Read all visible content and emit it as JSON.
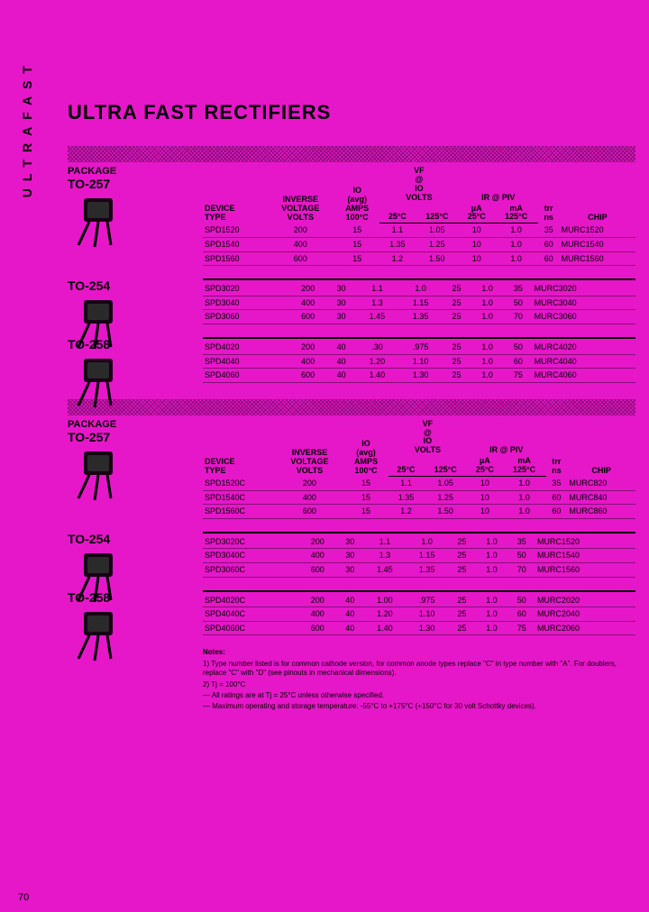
{
  "side_label": "ULTRAFAST",
  "title": "ULTRA FAST RECTIFIERS",
  "page_number": "70",
  "header": {
    "package": "PACKAGE",
    "device_type": "DEVICE TYPE",
    "inverse_voltage": "INVERSE VOLTAGE VOLTS",
    "io_avg": "IO (avg) AMPS 100°C",
    "vf": "VF @ IO VOLTS",
    "vf_25": "25°C",
    "vf_125": "125°C",
    "ir": "IR @ PIV",
    "ir_ua": "µA 25°C",
    "ir_ma": "mA 125°C",
    "trr": "trr ns",
    "chip": "CHIP"
  },
  "packages_a": [
    {
      "name": "TO-257",
      "rows": [
        {
          "dev": "SPD1520",
          "iv": "200",
          "io": "15",
          "vf25": "1.1",
          "vf125": "1.05",
          "ua": "10",
          "ma": "1.0",
          "trr": "35",
          "chip": "MURC1520"
        },
        {
          "dev": "SPD1540",
          "iv": "400",
          "io": "15",
          "vf25": "1.35",
          "vf125": "1.25",
          "ua": "10",
          "ma": "1.0",
          "trr": "60",
          "chip": "MURC1540"
        },
        {
          "dev": "SPD1560",
          "iv": "600",
          "io": "15",
          "vf25": "1.2",
          "vf125": "1.50",
          "ua": "10",
          "ma": "1.0",
          "trr": "60",
          "chip": "MURC1560"
        }
      ]
    },
    {
      "name": "TO-254",
      "rows": [
        {
          "dev": "SPD3020",
          "iv": "200",
          "io": "30",
          "vf25": "1.1",
          "vf125": "1.0",
          "ua": "25",
          "ma": "1.0",
          "trr": "35",
          "chip": "MURC3020"
        },
        {
          "dev": "SPD3040",
          "iv": "400",
          "io": "30",
          "vf25": "1.3",
          "vf125": "1.15",
          "ua": "25",
          "ma": "1.0",
          "trr": "50",
          "chip": "MURC3040"
        },
        {
          "dev": "SPD3060",
          "iv": "600",
          "io": "30",
          "vf25": "1.45",
          "vf125": "1.35",
          "ua": "25",
          "ma": "1.0",
          "trr": "70",
          "chip": "MURC3060"
        }
      ]
    },
    {
      "name": "TO-258",
      "rows": [
        {
          "dev": "SPD4020",
          "iv": "200",
          "io": "40",
          "vf25": ".30",
          "vf125": ".975",
          "ua": "25",
          "ma": "1.0",
          "trr": "50",
          "chip": "MURC4020"
        },
        {
          "dev": "SPD4040",
          "iv": "400",
          "io": "40",
          "vf25": "1.20",
          "vf125": "1.10",
          "ua": "25",
          "ma": "1.0",
          "trr": "60",
          "chip": "MURC4040"
        },
        {
          "dev": "SPD4060",
          "iv": "600",
          "io": "40",
          "vf25": "1.40",
          "vf125": "1.30",
          "ua": "25",
          "ma": "1.0",
          "trr": "75",
          "chip": "MURC4060"
        }
      ]
    }
  ],
  "packages_b": [
    {
      "name": "TO-257",
      "rows": [
        {
          "dev": "SPD1520C",
          "iv": "200",
          "io": "15",
          "vf25": "1.1",
          "vf125": "1.05",
          "ua": "10",
          "ma": "1.0",
          "trr": "35",
          "chip": "MURC820"
        },
        {
          "dev": "SPD1540C",
          "iv": "400",
          "io": "15",
          "vf25": "1.35",
          "vf125": "1.25",
          "ua": "10",
          "ma": "1.0",
          "trr": "60",
          "chip": "MURC840"
        },
        {
          "dev": "SPD1560C",
          "iv": "600",
          "io": "15",
          "vf25": "1.2",
          "vf125": "1.50",
          "ua": "10",
          "ma": "1.0",
          "trr": "60",
          "chip": "MURC860"
        }
      ]
    },
    {
      "name": "TO-254",
      "rows": [
        {
          "dev": "SPD3020C",
          "iv": "200",
          "io": "30",
          "vf25": "1.1",
          "vf125": "1.0",
          "ua": "25",
          "ma": "1.0",
          "trr": "35",
          "chip": "MURC1520"
        },
        {
          "dev": "SPD3040C",
          "iv": "400",
          "io": "30",
          "vf25": "1.3",
          "vf125": "1.15",
          "ua": "25",
          "ma": "1.0",
          "trr": "50",
          "chip": "MURC1540"
        },
        {
          "dev": "SPD3060C",
          "iv": "600",
          "io": "30",
          "vf25": "1.45",
          "vf125": "1.35",
          "ua": "25",
          "ma": "1.0",
          "trr": "70",
          "chip": "MURC1560"
        }
      ]
    },
    {
      "name": "TO-258",
      "rows": [
        {
          "dev": "SPD4020C",
          "iv": "200",
          "io": "40",
          "vf25": "1.00",
          "vf125": ".975",
          "ua": "25",
          "ma": "1.0",
          "trr": "50",
          "chip": "MURC2020"
        },
        {
          "dev": "SPD4040C",
          "iv": "400",
          "io": "40",
          "vf25": "1.20",
          "vf125": "1.10",
          "ua": "25",
          "ma": "1.0",
          "trr": "60",
          "chip": "MURC2040"
        },
        {
          "dev": "SPD4060C",
          "iv": "600",
          "io": "40",
          "vf25": "1.40",
          "vf125": "1.30",
          "ua": "25",
          "ma": "1.0",
          "trr": "75",
          "chip": "MURC2060"
        }
      ]
    }
  ],
  "notes": {
    "heading": "Notes:",
    "n1": "1) Type number listed is for common cathode version, for common anode types replace \"C\" in type number with \"A\". For doublers, replace \"C\" with \"D\" (see pinouts in mechanical dimensions).",
    "n2": "2) Tj = 100°C",
    "n3": "— All ratings are at Tj = 25°C unless otherwise specified.",
    "n4": "— Maximum operating and storage temperature: -55°C to +175°C (+150°C for 30 volt Schottky devices)."
  },
  "colors": {
    "bg": "#e617c9",
    "text": "#000000"
  }
}
